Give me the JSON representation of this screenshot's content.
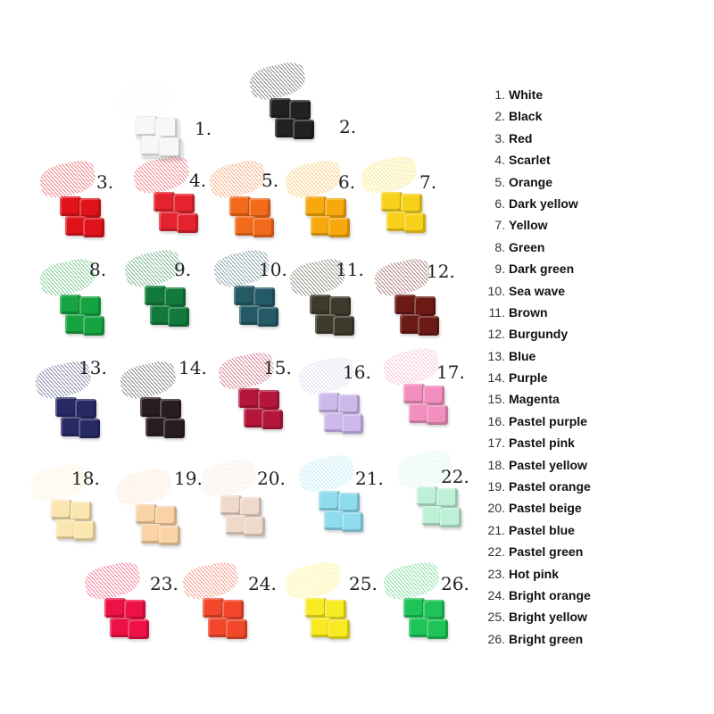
{
  "swatches": [
    {
      "label": "1.",
      "name": "White",
      "color": "#f7f7f5"
    },
    {
      "label": "2.",
      "name": "Black",
      "color": "#222222"
    },
    {
      "label": "3.",
      "name": "Red",
      "color": "#e0131b"
    },
    {
      "label": "4.",
      "name": "Scarlet",
      "color": "#e5232e"
    },
    {
      "label": "5.",
      "name": "Orange",
      "color": "#f26a1b"
    },
    {
      "label": "6.",
      "name": "Dark yellow",
      "color": "#f6a80c"
    },
    {
      "label": "7.",
      "name": "Yellow",
      "color": "#f8d21a"
    },
    {
      "label": "8.",
      "name": "Green",
      "color": "#16a341"
    },
    {
      "label": "9.",
      "name": "Dark green",
      "color": "#117a3a"
    },
    {
      "label": "10.",
      "name": "Sea wave",
      "color": "#245a66"
    },
    {
      "label": "11.",
      "name": "Brown",
      "color": "#3e3a2c"
    },
    {
      "label": "12.",
      "name": "Burgundy",
      "color": "#6b1a16"
    },
    {
      "label": "13.",
      "name": "Blue",
      "color": "#282a66"
    },
    {
      "label": "14.",
      "name": "Purple",
      "color": "#2a1d22"
    },
    {
      "label": "15.",
      "name": "Magenta",
      "color": "#b5173a"
    },
    {
      "label": "16.",
      "name": "Pastel purple",
      "color": "#cdb9ec"
    },
    {
      "label": "17.",
      "name": "Pastel pink",
      "color": "#f28fbf"
    },
    {
      "label": "18.",
      "name": "Pastel yellow",
      "color": "#fbe6b0"
    },
    {
      "label": "19.",
      "name": "Pastel orange",
      "color": "#f9d2a6"
    },
    {
      "label": "20.",
      "name": "Pastel beige",
      "color": "#efd9cb"
    },
    {
      "label": "21.",
      "name": "Pastel blue",
      "color": "#8fdcef"
    },
    {
      "label": "22.",
      "name": "Pastel green",
      "color": "#bdf0d6"
    },
    {
      "label": "23.",
      "name": "Hot pink",
      "color": "#ee1145"
    },
    {
      "label": "24.",
      "name": "Bright orange",
      "color": "#f2472a"
    },
    {
      "label": "25.",
      "name": "Bright yellow",
      "color": "#f7ea20"
    },
    {
      "label": "26.",
      "name": "Bright green",
      "color": "#1ec457"
    }
  ]
}
